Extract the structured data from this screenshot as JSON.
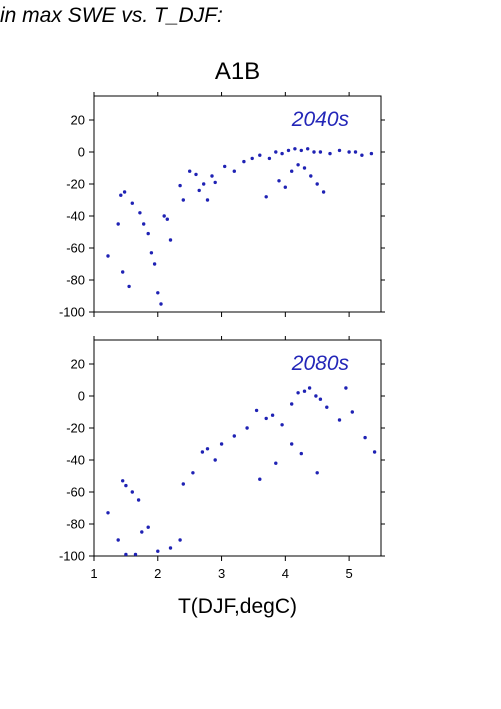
{
  "figure": {
    "title": "in max SWE vs. T_DJF:",
    "scenario": "A1B"
  },
  "style": {
    "point_color": "#1f22b4",
    "label_color": "#2326b8"
  },
  "chart_data": [
    {
      "type": "scatter",
      "panel_label": "2040s",
      "xlabel": "",
      "ylabel": "",
      "xlim": [
        1,
        5.5
      ],
      "ylim": [
        -100,
        35
      ],
      "yticks": [
        20,
        0,
        -20,
        -40,
        -60,
        -80,
        -100
      ],
      "xticks": [],
      "points": [
        [
          1.22,
          -65
        ],
        [
          1.38,
          -45
        ],
        [
          1.42,
          -27
        ],
        [
          1.48,
          -25
        ],
        [
          1.6,
          -32
        ],
        [
          1.45,
          -75
        ],
        [
          1.55,
          -84
        ],
        [
          1.72,
          -38
        ],
        [
          1.78,
          -45
        ],
        [
          1.85,
          -51
        ],
        [
          1.9,
          -63
        ],
        [
          1.95,
          -70
        ],
        [
          2.0,
          -88
        ],
        [
          2.05,
          -95
        ],
        [
          2.1,
          -40
        ],
        [
          2.15,
          -42
        ],
        [
          2.2,
          -55
        ],
        [
          2.35,
          -21
        ],
        [
          2.4,
          -30
        ],
        [
          2.5,
          -12
        ],
        [
          2.6,
          -14
        ],
        [
          2.65,
          -24
        ],
        [
          2.72,
          -20
        ],
        [
          2.78,
          -30
        ],
        [
          2.85,
          -15
        ],
        [
          2.9,
          -19
        ],
        [
          3.05,
          -9
        ],
        [
          3.2,
          -12
        ],
        [
          3.35,
          -6
        ],
        [
          3.48,
          -4
        ],
        [
          3.6,
          -2
        ],
        [
          3.75,
          -4
        ],
        [
          3.85,
          0
        ],
        [
          3.95,
          -1
        ],
        [
          4.05,
          1
        ],
        [
          4.15,
          2
        ],
        [
          4.25,
          1
        ],
        [
          4.35,
          2
        ],
        [
          4.45,
          0
        ],
        [
          4.55,
          0
        ],
        [
          4.7,
          -1
        ],
        [
          4.85,
          1
        ],
        [
          5.0,
          0
        ],
        [
          5.1,
          0
        ],
        [
          5.2,
          -2
        ],
        [
          5.35,
          -1
        ],
        [
          4.2,
          -8
        ],
        [
          4.3,
          -10
        ],
        [
          4.1,
          -12
        ],
        [
          4.4,
          -15
        ],
        [
          3.9,
          -18
        ],
        [
          4.5,
          -20
        ],
        [
          4.0,
          -22
        ],
        [
          4.6,
          -25
        ],
        [
          3.7,
          -28
        ]
      ]
    },
    {
      "type": "scatter",
      "panel_label": "2080s",
      "xlabel": "T(DJF,degC)",
      "ylabel": "",
      "xlim": [
        1,
        5.5
      ],
      "ylim": [
        -100,
        35
      ],
      "yticks": [
        20,
        0,
        -20,
        -40,
        -60,
        -80,
        -100
      ],
      "xticks": [
        1,
        2,
        3,
        4,
        5
      ],
      "points": [
        [
          1.22,
          -73
        ],
        [
          1.38,
          -90
        ],
        [
          1.45,
          -53
        ],
        [
          1.5,
          -56
        ],
        [
          1.6,
          -60
        ],
        [
          1.7,
          -65
        ],
        [
          1.75,
          -85
        ],
        [
          1.85,
          -82
        ],
        [
          1.5,
          -99
        ],
        [
          1.65,
          -99
        ],
        [
          2.0,
          -97
        ],
        [
          2.2,
          -95
        ],
        [
          2.35,
          -90
        ],
        [
          2.4,
          -55
        ],
        [
          2.55,
          -48
        ],
        [
          2.7,
          -35
        ],
        [
          2.78,
          -33
        ],
        [
          2.9,
          -40
        ],
        [
          3.0,
          -30
        ],
        [
          3.2,
          -25
        ],
        [
          3.4,
          -20
        ],
        [
          3.55,
          -9
        ],
        [
          3.7,
          -14
        ],
        [
          3.8,
          -12
        ],
        [
          3.95,
          -18
        ],
        [
          4.1,
          -5
        ],
        [
          4.2,
          2
        ],
        [
          4.3,
          3
        ],
        [
          4.38,
          5
        ],
        [
          4.48,
          0
        ],
        [
          4.55,
          -2
        ],
        [
          4.65,
          -7
        ],
        [
          4.85,
          -15
        ],
        [
          4.95,
          5
        ],
        [
          5.05,
          -10
        ],
        [
          5.25,
          -26
        ],
        [
          5.4,
          -35
        ],
        [
          4.1,
          -30
        ],
        [
          4.25,
          -36
        ],
        [
          3.85,
          -42
        ],
        [
          4.5,
          -48
        ],
        [
          3.6,
          -52
        ]
      ]
    }
  ]
}
